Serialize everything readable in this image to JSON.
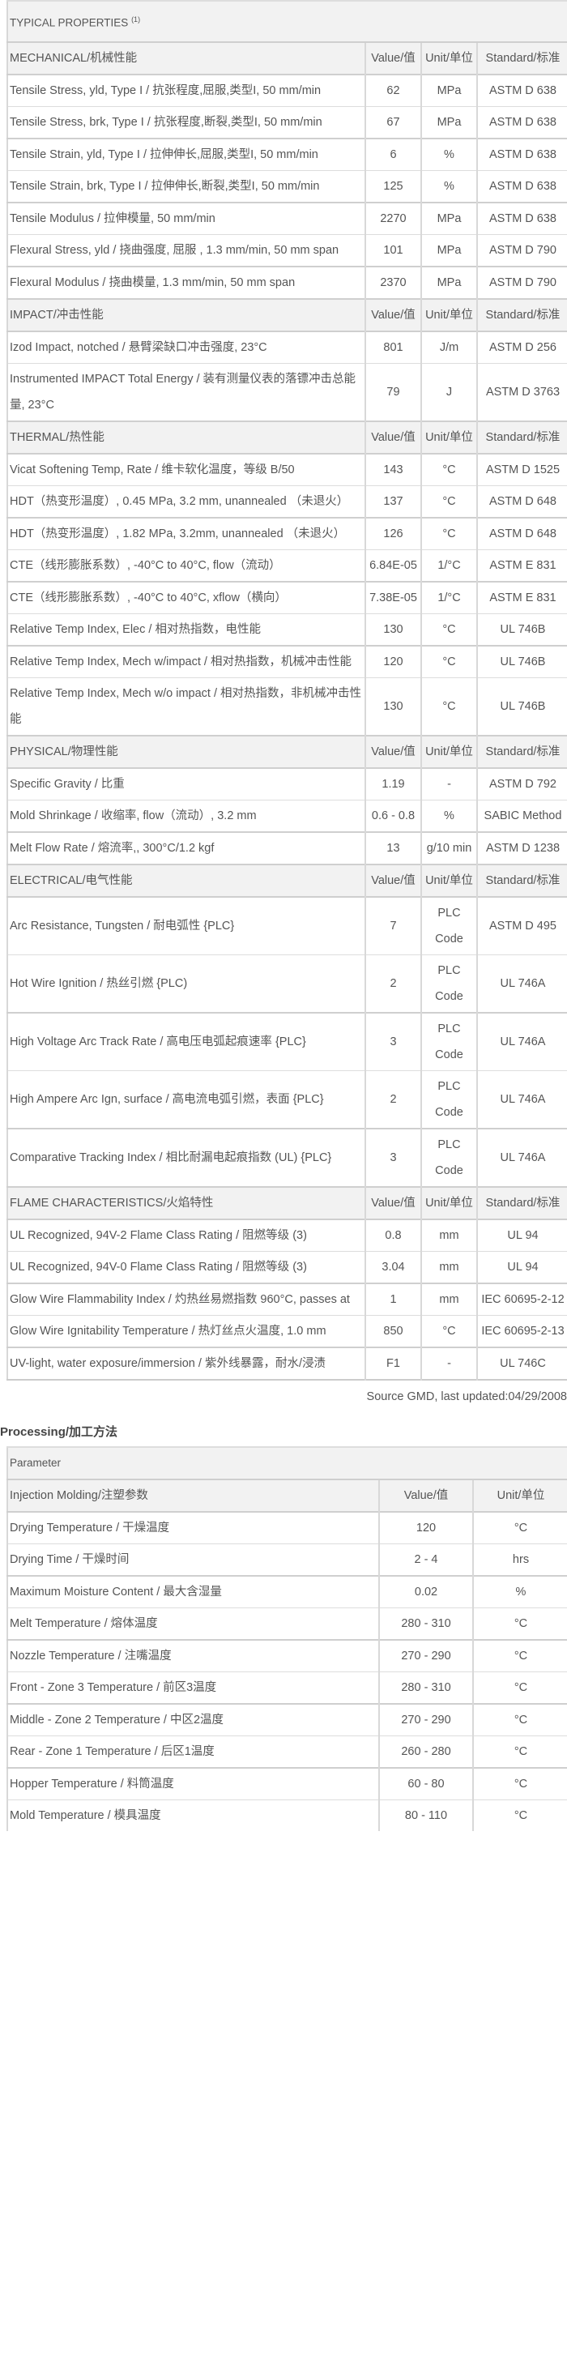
{
  "typical": {
    "title": "TYPICAL PROPERTIES",
    "sup": "(1)"
  },
  "col_headers": {
    "value": "Value/值",
    "unit": "Unit/单位",
    "standard": "Standard/标准"
  },
  "sections": [
    {
      "title": "MECHANICAL/机械性能",
      "rows": [
        [
          "Tensile Stress, yld, Type I / 抗张程度,屈服,类型I, 50 mm/min",
          "62",
          "MPa",
          "ASTM D 638"
        ],
        [
          "Tensile Stress, brk, Type I / 抗张程度,断裂,类型I, 50 mm/min",
          "67",
          "MPa",
          "ASTM D 638"
        ],
        [
          "Tensile Strain, yld, Type I / 拉伸伸长,屈服,类型I, 50 mm/min",
          "6",
          "%",
          "ASTM D 638"
        ],
        [
          "Tensile Strain, brk, Type I / 拉伸伸长,断裂,类型I, 50 mm/min",
          "125",
          "%",
          "ASTM D 638"
        ],
        [
          "Tensile Modulus / 拉伸模量, 50 mm/min",
          "2270",
          "MPa",
          "ASTM D 638"
        ],
        [
          "Flexural Stress, yld / 挠曲强度, 屈服 , 1.3 mm/min, 50 mm span",
          "101",
          "MPa",
          "ASTM D 790"
        ],
        [
          "Flexural Modulus / 挠曲模量, 1.3 mm/min, 50 mm span",
          "2370",
          "MPa",
          "ASTM D 790"
        ]
      ]
    },
    {
      "title": "IMPACT/冲击性能",
      "rows": [
        [
          "Izod Impact, notched / 悬臂梁缺口冲击强度, 23°C",
          "801",
          "J/m",
          "ASTM D 256"
        ],
        [
          "Instrumented IMPACT Total Energy / 装有测量仪表的落镖冲击总能量, 23°C",
          "79",
          "J",
          "ASTM D 3763"
        ]
      ]
    },
    {
      "title": "THERMAL/热性能",
      "rows": [
        [
          "Vicat Softening Temp, Rate / 维卡软化温度，等级 B/50",
          "143",
          "°C",
          "ASTM D 1525"
        ],
        [
          "HDT（热变形温度）, 0.45 MPa, 3.2 mm, unannealed （未退火）",
          "137",
          "°C",
          "ASTM D 648"
        ],
        [
          "HDT（热变形温度）, 1.82 MPa, 3.2mm, unannealed （未退火）",
          "126",
          "°C",
          "ASTM D 648"
        ],
        [
          "CTE（线形膨胀系数）, -40°C to 40°C, flow（流动）",
          "6.84E-05",
          "1/°C",
          "ASTM E 831"
        ],
        [
          "CTE（线形膨胀系数）, -40°C to 40°C, xflow（横向）",
          "7.38E-05",
          "1/°C",
          "ASTM E 831"
        ],
        [
          "Relative Temp Index, Elec / 相对热指数，电性能",
          "130",
          "°C",
          "UL 746B"
        ],
        [
          "Relative Temp Index, Mech w/impact / 相对热指数，机械冲击性能",
          "120",
          "°C",
          "UL 746B"
        ],
        [
          "Relative Temp Index, Mech w/o impact / 相对热指数，非机械冲击性能",
          "130",
          "°C",
          "UL 746B"
        ]
      ]
    },
    {
      "title": "PHYSICAL/物理性能",
      "rows": [
        [
          "Specific Gravity / 比重",
          "1.19",
          "-",
          "ASTM D 792"
        ],
        [
          "Mold Shrinkage / 收缩率, flow（流动）, 3.2 mm",
          "0.6 - 0.8",
          "%",
          "SABIC Method"
        ],
        [
          "Melt Flow Rate / 熔流率,, 300°C/1.2 kgf",
          "13",
          "g/10 min",
          "ASTM D 1238"
        ]
      ]
    },
    {
      "title": "ELECTRICAL/电气性能",
      "rows": [
        [
          "Arc Resistance, Tungsten / 耐电弧性 {PLC}",
          "7",
          "PLC Code",
          "ASTM D 495"
        ],
        [
          "Hot Wire Ignition / 热丝引燃 {PLC)",
          "2",
          "PLC Code",
          "UL 746A"
        ],
        [
          "High Voltage Arc Track Rate / 高电压电弧起痕速率 {PLC}",
          "3",
          "PLC Code",
          "UL 746A"
        ],
        [
          "High Ampere Arc Ign, surface / 高电流电弧引燃，表面 {PLC}",
          "2",
          "PLC Code",
          "UL 746A"
        ],
        [
          "Comparative Tracking Index / 相比耐漏电起痕指数 (UL) {PLC}",
          "3",
          "PLC Code",
          "UL 746A"
        ]
      ]
    },
    {
      "title": "FLAME CHARACTERISTICS/火焰特性",
      "rows": [
        [
          "UL Recognized, 94V-2 Flame Class Rating / 阻燃等级 (3)",
          "0.8",
          "mm",
          "UL 94"
        ],
        [
          "UL Recognized, 94V-0 Flame Class Rating / 阻燃等级 (3)",
          "3.04",
          "mm",
          "UL 94"
        ],
        [
          "Glow Wire Flammability Index / 灼热丝易燃指数 960°C, passes at",
          "1",
          "mm",
          "IEC 60695-2-12"
        ],
        [
          "Glow Wire Ignitability Temperature / 热灯丝点火温度, 1.0 mm",
          "850",
          "°C",
          "IEC 60695-2-13"
        ],
        [
          "UV-light, water exposure/immersion / 紫外线暴露，耐水/浸渍",
          "F1",
          "-",
          "UL 746C"
        ]
      ]
    }
  ],
  "source": "Source GMD, last updated:04/29/2008",
  "processing": {
    "title": "Processing/加工方法",
    "parameter": "Parameter",
    "header": [
      "Injection Molding/注塑参数",
      "Value/值",
      "Unit/单位"
    ],
    "rows": [
      [
        "Drying Temperature / 干燥温度",
        "120",
        "°C"
      ],
      [
        "Drying Time / 干燥时间",
        "2 - 4",
        "hrs"
      ],
      [
        "Maximum Moisture Content / 最大含湿量",
        "0.02",
        "%"
      ],
      [
        "Melt Temperature / 熔体温度",
        "280 - 310",
        "°C"
      ],
      [
        "Nozzle Temperature / 注嘴温度",
        "270 - 290",
        "°C"
      ],
      [
        "Front - Zone 3 Temperature / 前区3温度",
        "280 - 310",
        "°C"
      ],
      [
        "Middle - Zone 2 Temperature / 中区2温度",
        "270 - 290",
        "°C"
      ],
      [
        "Rear - Zone 1 Temperature / 后区1温度",
        "260 - 280",
        "°C"
      ],
      [
        "Hopper Temperature / 料筒温度",
        "60 - 80",
        "°C"
      ],
      [
        "Mold Temperature / 模具温度",
        "80 - 110",
        "°C"
      ]
    ]
  }
}
